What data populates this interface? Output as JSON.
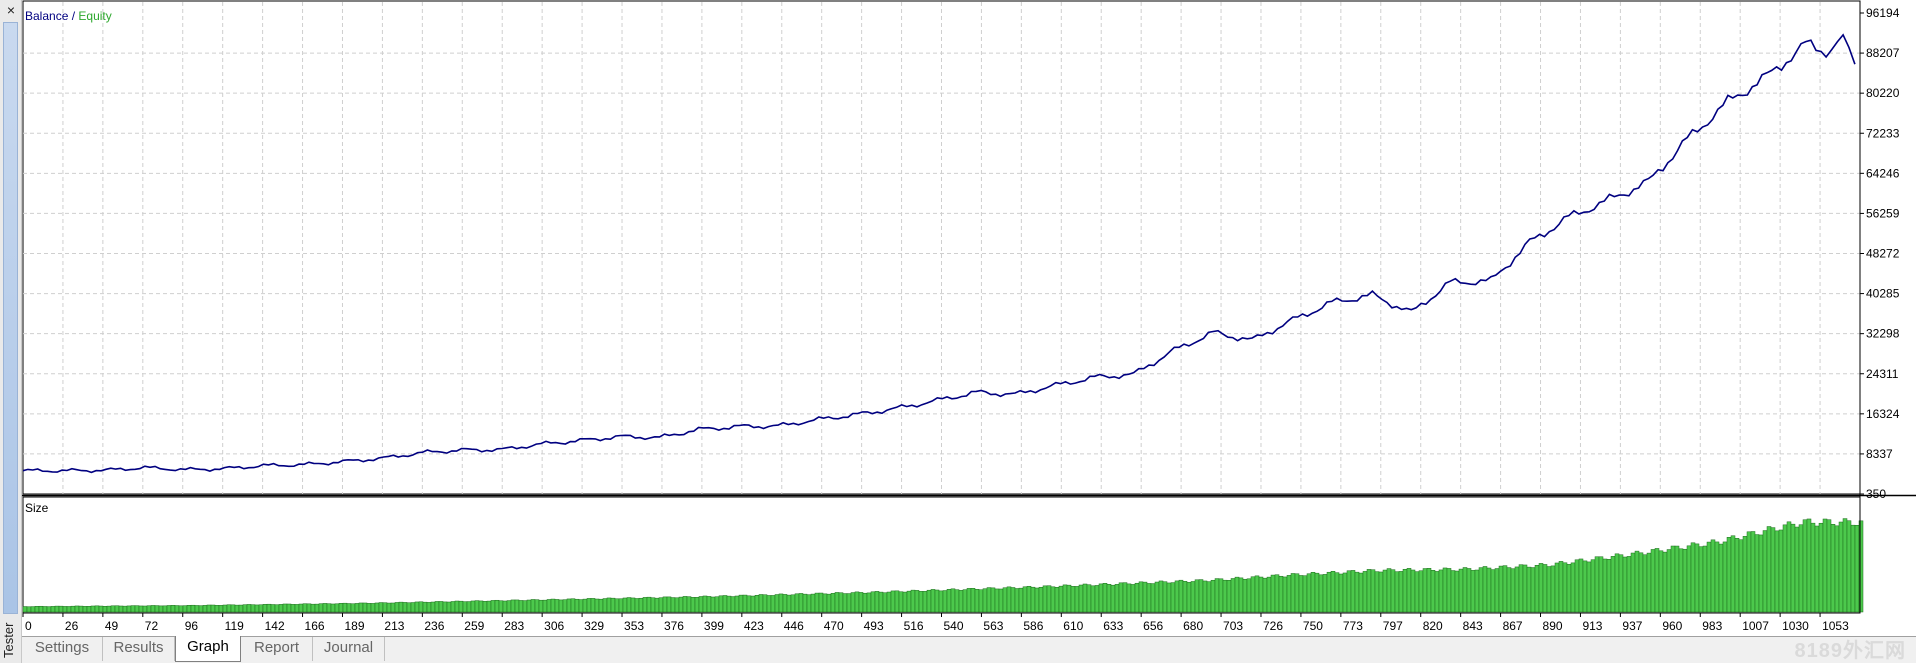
{
  "window": {
    "side_label": "Tester",
    "close_glyph": "×",
    "tabs": [
      {
        "label": "Settings",
        "active": false
      },
      {
        "label": "Results",
        "active": false
      },
      {
        "label": "Graph",
        "active": true
      },
      {
        "label": "Report",
        "active": false
      },
      {
        "label": "Journal",
        "active": false
      }
    ],
    "watermark": "8189外汇网"
  },
  "chart_data": [
    {
      "type": "line",
      "legend": [
        {
          "name": "Balance",
          "color": "#000080"
        },
        {
          "name": "Equity",
          "color": "#2ea82e"
        }
      ],
      "legend_separator": " / ",
      "y_ticks": [
        "96194",
        "88207",
        "80220",
        "72233",
        "64246",
        "56259",
        "48272",
        "40285",
        "32298",
        "24311",
        "16324",
        "8337",
        "350"
      ],
      "ylim": [
        350,
        96194
      ],
      "xlim": [
        0,
        1085
      ],
      "grid": true,
      "series": [
        {
          "name": "Balance",
          "color": "#000080",
          "x": [
            0,
            26,
            49,
            72,
            96,
            119,
            142,
            166,
            189,
            213,
            236,
            259,
            283,
            306,
            329,
            353,
            376,
            399,
            423,
            446,
            470,
            493,
            516,
            540,
            563,
            586,
            610,
            633,
            656,
            680,
            703,
            726,
            750,
            773,
            797,
            820,
            843,
            867,
            890,
            913,
            937,
            960,
            983,
            1007,
            1030,
            1053,
            1065,
            1075,
            1082
          ],
          "y": [
            5000,
            5000,
            5100,
            5600,
            5200,
            5400,
            6000,
            6200,
            6800,
            7500,
            8600,
            9100,
            9200,
            10300,
            11000,
            11800,
            11600,
            13200,
            13800,
            13900,
            15200,
            16200,
            17400,
            19000,
            20600,
            20200,
            22000,
            23600,
            24200,
            29000,
            32500,
            31000,
            35000,
            38500,
            40000,
            36500,
            42500,
            42800,
            50500,
            55500,
            59000,
            62500,
            71000,
            78500,
            83500,
            90000,
            88500,
            91000,
            86000
          ]
        }
      ]
    },
    {
      "type": "bar",
      "title": "Size",
      "color": "#4cc94c",
      "x_ticks": [
        "0",
        "26",
        "49",
        "72",
        "96",
        "119",
        "142",
        "166",
        "189",
        "213",
        "236",
        "259",
        "283",
        "306",
        "329",
        "353",
        "376",
        "399",
        "423",
        "446",
        "470",
        "493",
        "516",
        "540",
        "563",
        "586",
        "610",
        "633",
        "656",
        "680",
        "703",
        "726",
        "750",
        "773",
        "797",
        "820",
        "843",
        "867",
        "890",
        "913",
        "937",
        "960",
        "983",
        "1007",
        "1030",
        "1053"
      ],
      "xlim": [
        0,
        1085
      ],
      "x": [
        0,
        100,
        200,
        300,
        400,
        500,
        600,
        650,
        700,
        750,
        800,
        850,
        900,
        950,
        1000,
        1030,
        1050,
        1085
      ],
      "values": [
        0.05,
        0.06,
        0.08,
        0.11,
        0.14,
        0.18,
        0.23,
        0.26,
        0.29,
        0.34,
        0.38,
        0.39,
        0.43,
        0.53,
        0.64,
        0.75,
        0.82,
        0.82
      ]
    }
  ]
}
